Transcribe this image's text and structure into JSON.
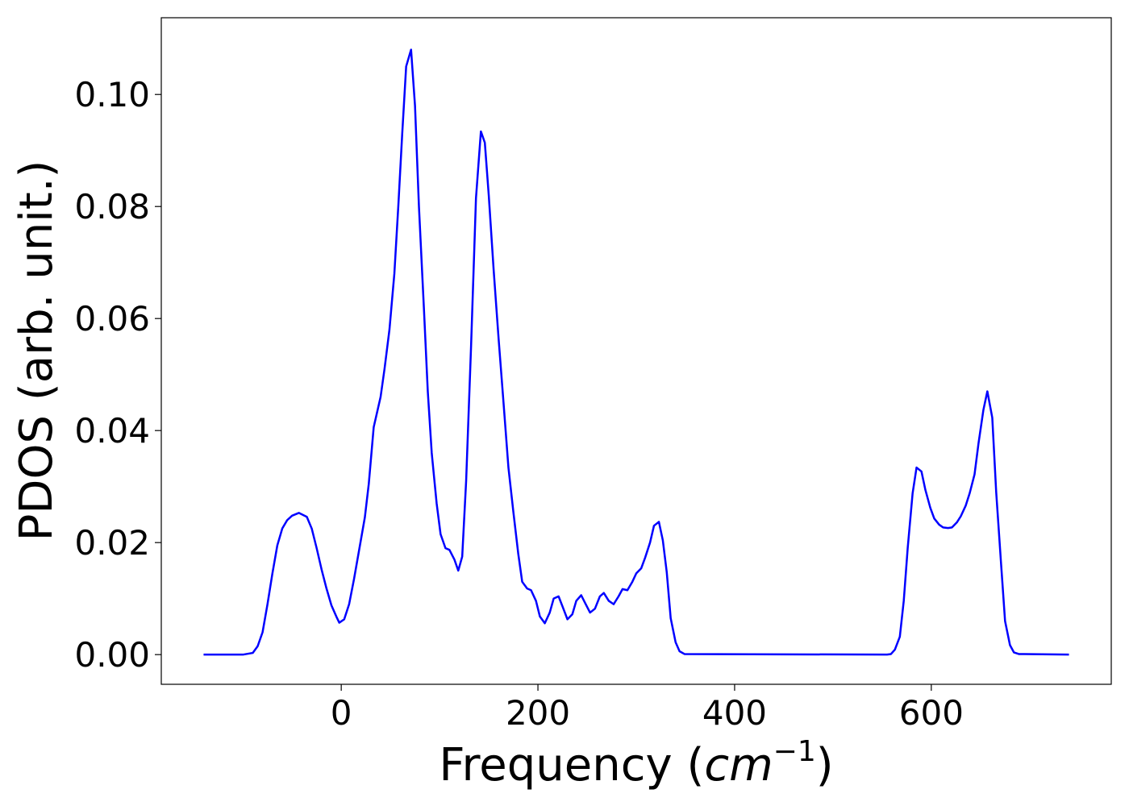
{
  "chart_data": {
    "type": "line",
    "xlabel": [
      "Frequency (",
      "cm",
      "−1",
      ")"
    ],
    "ylabel": "PDOS (arb. unit.)",
    "color": "#0000ff",
    "xlim": [
      -183,
      783
    ],
    "ylim": [
      -0.0053,
      0.1137
    ],
    "xticks": [
      0,
      200,
      400,
      600
    ],
    "yticks": [
      {
        "value": 0,
        "label": "0.00"
      },
      0.02,
      0.04,
      0.06,
      0.08,
      {
        "value": 0.1,
        "label": "0.10"
      }
    ],
    "x": [
      -140,
      -100,
      -90,
      -85,
      -80,
      -75,
      -70,
      -65,
      -60,
      -55,
      -50,
      -43,
      -35,
      -30,
      -25,
      -20,
      -15,
      -10,
      -5,
      -2,
      3,
      8,
      13,
      18,
      24,
      28,
      33,
      40,
      44,
      49,
      54,
      58,
      62,
      66,
      71,
      75,
      79,
      84,
      88,
      92,
      97,
      101,
      106,
      110,
      115,
      119,
      123,
      127,
      132,
      137,
      142,
      146,
      150,
      155,
      160,
      165,
      170,
      175,
      180,
      184,
      189,
      193,
      198,
      202,
      207,
      212,
      216,
      221,
      225,
      230,
      235,
      239,
      244,
      248,
      253,
      258,
      263,
      267,
      272,
      277,
      282,
      286,
      291,
      296,
      300,
      305,
      309,
      314,
      318,
      323,
      327,
      331,
      335,
      340,
      344,
      349,
      555,
      559,
      563,
      568,
      572,
      576,
      581,
      585,
      590,
      594,
      599,
      603,
      608,
      612,
      617,
      621,
      626,
      630,
      635,
      639,
      644,
      648,
      653,
      657,
      662,
      666,
      671,
      675,
      680,
      684,
      689,
      740
    ],
    "values": [
      0,
      0,
      0.0003,
      0.0015,
      0.004,
      0.009,
      0.0145,
      0.0195,
      0.0225,
      0.024,
      0.0248,
      0.0253,
      0.0246,
      0.0225,
      0.019,
      0.0152,
      0.0118,
      0.0088,
      0.0068,
      0.0057,
      0.0063,
      0.009,
      0.0135,
      0.0185,
      0.0245,
      0.0305,
      0.0406,
      0.046,
      0.051,
      0.058,
      0.068,
      0.08,
      0.093,
      0.105,
      0.108,
      0.098,
      0.08,
      0.062,
      0.047,
      0.036,
      0.027,
      0.0215,
      0.019,
      0.0187,
      0.017,
      0.015,
      0.0175,
      0.031,
      0.055,
      0.0815,
      0.0934,
      0.0914,
      0.082,
      0.0686,
      0.0564,
      0.045,
      0.0334,
      0.0255,
      0.018,
      0.013,
      0.0118,
      0.0115,
      0.0096,
      0.0068,
      0.0056,
      0.0075,
      0.01,
      0.0104,
      0.0086,
      0.0063,
      0.0072,
      0.0096,
      0.0106,
      0.0092,
      0.0075,
      0.0082,
      0.0104,
      0.011,
      0.0096,
      0.009,
      0.0104,
      0.0117,
      0.0115,
      0.013,
      0.0145,
      0.0154,
      0.0173,
      0.02,
      0.023,
      0.0237,
      0.0204,
      0.0147,
      0.0065,
      0.0022,
      0.0006,
      0.0001,
      0,
      0.0001,
      0.0009,
      0.0032,
      0.0096,
      0.019,
      0.0288,
      0.0334,
      0.0327,
      0.0294,
      0.0262,
      0.0243,
      0.0232,
      0.0227,
      0.0226,
      0.0227,
      0.0236,
      0.0247,
      0.0266,
      0.0288,
      0.0322,
      0.0377,
      0.0437,
      0.047,
      0.0423,
      0.029,
      0.0161,
      0.006,
      0.0017,
      0.0004,
      0.0001,
      0
    ]
  }
}
